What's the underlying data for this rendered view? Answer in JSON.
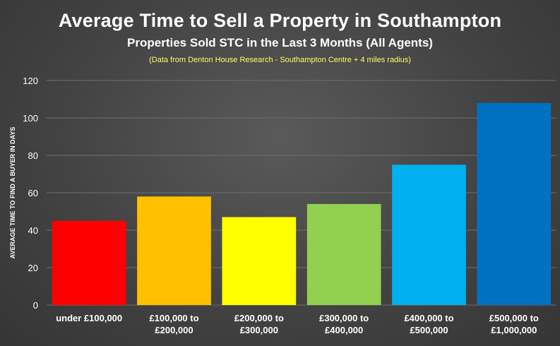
{
  "chart_data": {
    "type": "bar",
    "title": "Average Time to Sell a Property in Southampton",
    "subtitle": "Properties Sold STC in the Last 3 Months (All Agents)",
    "note": "(Data from Denton House Research - Southampton Centre + 4 miles radius)",
    "xlabel": "",
    "ylabel": "AVERAGE TIME TO FIND A BUYER IN DAYS",
    "ylim": [
      0,
      120
    ],
    "yticks": [
      0,
      20,
      40,
      60,
      80,
      100,
      120
    ],
    "grid": true,
    "categories": [
      [
        "under £100,000"
      ],
      [
        "£100,000 to",
        "£200,000"
      ],
      [
        "£200,000 to",
        "£300,000"
      ],
      [
        "£300,000 to",
        "£400,000"
      ],
      [
        "£400,000 to",
        "£500,000"
      ],
      [
        "£500,000 to",
        "£1,000,000"
      ]
    ],
    "values": [
      45,
      58,
      47,
      54,
      75,
      108
    ],
    "colors": [
      "#ff0000",
      "#ffc000",
      "#ffff00",
      "#92d050",
      "#00b0f0",
      "#0070c0"
    ]
  }
}
